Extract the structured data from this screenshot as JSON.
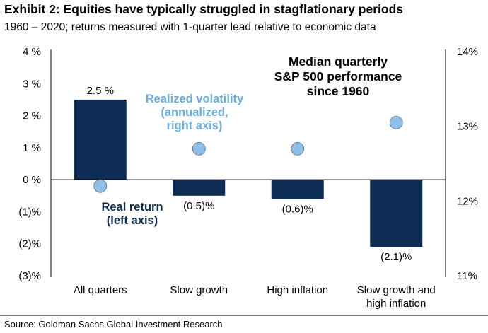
{
  "header": {
    "title": "Exhibit 2: Equities have typically struggled in stagflationary periods",
    "subtitle": "1960 – 2020; returns measured with 1-quarter lead relative to economic data"
  },
  "footer": {
    "source": "Source: Goldman Sachs Global Investment Research"
  },
  "chart_data": {
    "type": "bar",
    "title": "Median quarterly S&P 500 performance since 1960",
    "title_lines": [
      "Median quarterly",
      "S&P 500 performance",
      "since 1960"
    ],
    "categories": [
      "All quarters",
      "Slow growth",
      "High inflation",
      "Slow growth and high inflation"
    ],
    "category_lines": [
      [
        "All quarters"
      ],
      [
        "Slow growth"
      ],
      [
        "High inflation"
      ],
      [
        "Slow growth and",
        "high inflation"
      ]
    ],
    "series": [
      {
        "name": "Real return (left axis)",
        "name_lines": [
          "Real return",
          "(left axis)"
        ],
        "type": "bar",
        "axis": "left",
        "values": [
          2.5,
          -0.5,
          -0.6,
          -2.1
        ],
        "data_labels": [
          "2.5 %",
          "(0.5)%",
          "(0.6)%",
          "(2.1)%"
        ],
        "color": "#0d2d55"
      },
      {
        "name": "Realized volatility (annualized, right axis)",
        "name_lines": [
          "Realized volatility",
          "(annualized,",
          "right axis)"
        ],
        "type": "scatter",
        "axis": "right",
        "values": [
          12.2,
          12.7,
          12.7,
          13.05
        ],
        "color": "#8fbfe6",
        "label_color": "#6aaee0"
      }
    ],
    "left_axis": {
      "ylim": [
        -3,
        4
      ],
      "ticks": [
        4,
        3,
        2,
        1,
        0,
        -1,
        -2,
        -3
      ],
      "tick_labels": [
        "4 %",
        "3 %",
        "2 %",
        "1 %",
        "0 %",
        "(1)%",
        "(2)%",
        "(3)%"
      ]
    },
    "right_axis": {
      "ylim": [
        11,
        14
      ],
      "ticks": [
        14,
        13,
        12,
        11
      ],
      "tick_labels": [
        "14%",
        "13%",
        "12%",
        "11%"
      ]
    },
    "grid": false,
    "legend": "inline labels"
  }
}
